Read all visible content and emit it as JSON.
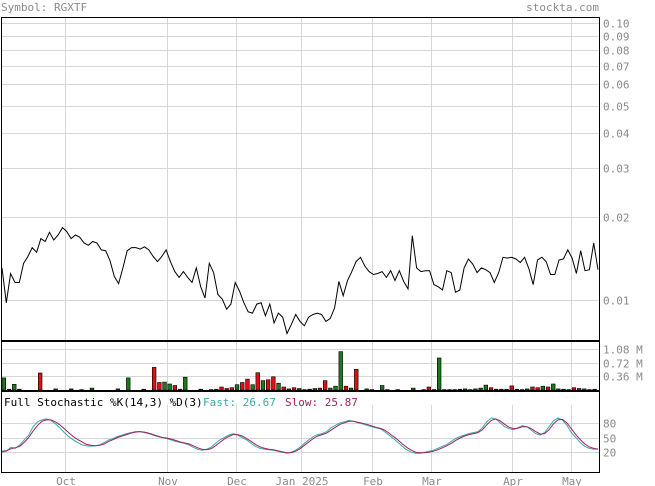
{
  "header": {
    "symbol_label": "Symbol: RGXTF",
    "site": "stockta.com"
  },
  "chart_data": [
    {
      "type": "line",
      "title": "",
      "y_scale": "log",
      "ylim": [
        0.0072,
        0.105
      ],
      "yticks": [
        "0.10",
        "0.09",
        "0.08",
        "0.07",
        "0.06",
        "0.05",
        "0.04",
        "0.03",
        "0.02",
        "0.01"
      ],
      "ytick_values": [
        0.1,
        0.09,
        0.08,
        0.07,
        0.06,
        0.05,
        0.04,
        0.03,
        0.02,
        0.01
      ],
      "months": [
        "Oct",
        "Nov",
        "Dec",
        "Jan 2025",
        "Feb",
        "Mar",
        "Apr",
        "May"
      ],
      "series": [
        {
          "values": [
            0.0131,
            0.0098,
            0.0125,
            0.0116,
            0.0116,
            0.0136,
            0.0144,
            0.0155,
            0.0149,
            0.0167,
            0.0163,
            0.0176,
            0.0165,
            0.0172,
            0.0183,
            0.0177,
            0.0167,
            0.0172,
            0.0169,
            0.0161,
            0.0158,
            0.0163,
            0.0161,
            0.0152,
            0.0151,
            0.0139,
            0.0122,
            0.0115,
            0.0131,
            0.0151,
            0.0155,
            0.0155,
            0.0153,
            0.0156,
            0.0152,
            0.0144,
            0.0138,
            0.0144,
            0.0152,
            0.0138,
            0.0127,
            0.0121,
            0.0127,
            0.0121,
            0.0116,
            0.0131,
            0.0112,
            0.0102,
            0.0136,
            0.0126,
            0.0105,
            0.0101,
            0.0093,
            0.0097,
            0.0116,
            0.0108,
            0.0098,
            0.0091,
            0.009,
            0.0097,
            0.0098,
            0.0088,
            0.0097,
            0.0083,
            0.009,
            0.0087,
            0.0076,
            0.0082,
            0.0089,
            0.0084,
            0.0081,
            0.0087,
            0.0089,
            0.009,
            0.0089,
            0.0084,
            0.0086,
            0.0094,
            0.0117,
            0.0104,
            0.0118,
            0.0127,
            0.0138,
            0.0143,
            0.0133,
            0.0127,
            0.0124,
            0.0125,
            0.0127,
            0.0121,
            0.0128,
            0.0118,
            0.0128,
            0.0117,
            0.011,
            0.0171,
            0.0131,
            0.0127,
            0.0128,
            0.0128,
            0.0114,
            0.0112,
            0.0109,
            0.0128,
            0.0126,
            0.0107,
            0.0109,
            0.0131,
            0.0141,
            0.0135,
            0.0126,
            0.0131,
            0.0129,
            0.0126,
            0.0116,
            0.0126,
            0.0143,
            0.0142,
            0.0143,
            0.0141,
            0.0137,
            0.0143,
            0.013,
            0.0114,
            0.014,
            0.0143,
            0.0138,
            0.0124,
            0.0124,
            0.014,
            0.0141,
            0.0152,
            0.0142,
            0.0125,
            0.0151,
            0.0128,
            0.0129,
            0.0161,
            0.0129
          ]
        }
      ]
    },
    {
      "type": "bar",
      "title": "",
      "ylim": [
        0,
        1.3
      ],
      "yticks": [
        "1.08 M",
        "0.72 M",
        "0.36 M"
      ],
      "ytick_values": [
        1.08,
        0.72,
        0.36
      ],
      "unit": "M",
      "up_color": "#1a7a1a",
      "down_color": "#dd1111",
      "values": [
        0.32,
        0.02,
        0.15,
        0.02,
        0,
        0,
        0,
        0.45,
        0,
        0,
        0.03,
        0,
        0,
        0.03,
        0,
        0.01,
        0,
        0.05,
        0,
        0,
        0,
        0,
        0.03,
        0,
        0.32,
        0,
        0,
        0.02,
        0,
        0.6,
        0.2,
        0.21,
        0.16,
        0.12,
        0.02,
        0.34,
        0,
        0,
        0.02,
        0,
        0.01,
        0.02,
        0.08,
        0.04,
        0.06,
        0.14,
        0.2,
        0.29,
        0.14,
        0.46,
        0.25,
        0.27,
        0.35,
        0.18,
        0.08,
        0.03,
        0.06,
        0.04,
        0.01,
        0.02,
        0.04,
        0.05,
        0.25,
        0.05,
        0.1,
        1.02,
        0.1,
        0.05,
        0.55,
        0,
        0.03,
        0.01,
        0,
        0.12,
        0.01,
        0,
        0.01,
        0,
        0,
        0.05,
        0,
        0.01,
        0.08,
        0.01,
        0.85,
        0.01,
        0.01,
        0.01,
        0.02,
        0.03,
        0.01,
        0.03,
        0.05,
        0.13,
        0.06,
        0.02,
        0.02,
        0.02,
        0.11,
        0.02,
        0.01,
        0.03,
        0.08,
        0.06,
        0.1,
        0.08,
        0.16,
        0.03,
        0.02,
        0.01,
        0.06,
        0.04,
        0.03,
        0.01,
        0.02
      ],
      "up": [
        1,
        0,
        1,
        0,
        1,
        1,
        1,
        0,
        1,
        1,
        1,
        0,
        1,
        1,
        0,
        1,
        1,
        1,
        0,
        1,
        0,
        1,
        0,
        1,
        1,
        0,
        1,
        1,
        1,
        0,
        0,
        1,
        1,
        0,
        1,
        1,
        0,
        1,
        0,
        1,
        1,
        1,
        0,
        0,
        0,
        1,
        0,
        0,
        1,
        0,
        1,
        0,
        0,
        1,
        0,
        1,
        0,
        1,
        1,
        0,
        1,
        0,
        0,
        1,
        1,
        1,
        0,
        1,
        0,
        1,
        0,
        1,
        0,
        1,
        0,
        1,
        0,
        1,
        1,
        1,
        0,
        1,
        0,
        1,
        1,
        0,
        1,
        1,
        0,
        0,
        1,
        0,
        1,
        1,
        0,
        1,
        0,
        1,
        0,
        1,
        1,
        1,
        0,
        0,
        1,
        0,
        1,
        1,
        1,
        1,
        0,
        0,
        1,
        0,
        1
      ]
    },
    {
      "type": "line",
      "title": "Full Stochastic %K(14,3) %D(3)",
      "fast_label": "Fast: 26.67",
      "slow_label": "Slow: 25.87",
      "ylim": [
        0,
        100
      ],
      "yticks": [
        "80",
        "50",
        "20"
      ],
      "ytick_values": [
        80,
        50,
        20
      ],
      "series": [
        {
          "name": "Fast",
          "color": "#3aa8a8",
          "values": [
            20,
            22,
            30,
            28,
            35,
            45,
            55,
            72,
            82,
            86,
            88,
            85,
            78,
            70,
            60,
            52,
            45,
            40,
            35,
            33,
            32,
            33,
            35,
            40,
            45,
            48,
            52,
            55,
            58,
            60,
            62,
            62,
            60,
            58,
            55,
            52,
            50,
            48,
            45,
            42,
            40,
            38,
            35,
            30,
            26,
            24,
            26,
            30,
            38,
            45,
            50,
            55,
            58,
            55,
            50,
            45,
            38,
            32,
            28,
            26,
            25,
            24,
            22,
            20,
            18,
            20,
            24,
            30,
            38,
            45,
            52,
            56,
            58,
            62,
            70,
            75,
            80,
            82,
            85,
            83,
            80,
            78,
            75,
            72,
            70,
            68,
            62,
            55,
            48,
            40,
            32,
            25,
            20,
            18,
            18,
            20,
            22,
            24,
            28,
            32,
            36,
            42,
            48,
            52,
            55,
            58,
            60,
            62,
            70,
            82,
            90,
            88,
            80,
            72,
            68,
            66,
            70,
            74,
            72,
            65,
            58,
            55,
            60,
            72,
            84,
            90,
            86,
            75,
            60,
            50,
            40,
            32,
            28,
            26,
            26.67
          ]
        },
        {
          "name": "Slow",
          "color": "#a02060",
          "values": [
            22,
            23,
            27,
            29,
            32,
            40,
            50,
            63,
            75,
            83,
            86,
            86,
            82,
            76,
            68,
            60,
            52,
            46,
            41,
            36,
            34,
            33,
            34,
            37,
            42,
            46,
            50,
            53,
            56,
            59,
            61,
            62,
            61,
            59,
            56,
            53,
            50,
            49,
            47,
            44,
            41,
            39,
            37,
            33,
            29,
            26,
            25,
            27,
            33,
            40,
            47,
            52,
            56,
            56,
            53,
            48,
            42,
            36,
            31,
            28,
            26,
            25,
            23,
            21,
            19,
            19,
            22,
            27,
            34,
            41,
            48,
            53,
            56,
            59,
            65,
            71,
            77,
            80,
            83,
            83,
            81,
            79,
            77,
            74,
            71,
            69,
            65,
            59,
            52,
            45,
            37,
            30,
            24,
            20,
            19,
            19,
            20,
            22,
            25,
            29,
            33,
            38,
            44,
            49,
            53,
            56,
            58,
            60,
            66,
            76,
            85,
            88,
            84,
            77,
            71,
            68,
            69,
            72,
            72,
            68,
            62,
            57,
            58,
            66,
            78,
            86,
            87,
            80,
            68,
            56,
            46,
            37,
            31,
            28,
            25.87
          ]
        }
      ]
    }
  ]
}
